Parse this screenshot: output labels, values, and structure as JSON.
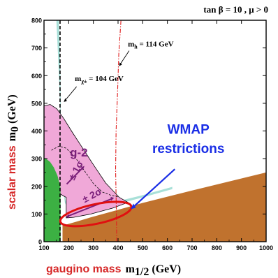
{
  "chart_data": {
    "type": "area",
    "title": "tan β = 10 ,  μ > 0",
    "xlabel": {
      "prefix": "gaugino mass",
      "symbol": "m",
      "subscript": "1/2",
      "unit": " (GeV)"
    },
    "ylabel": {
      "prefix": "scalar mass",
      "symbol": "m",
      "subscript": "0",
      "unit": " (GeV)"
    },
    "xlim": [
      100,
      1000
    ],
    "ylim": [
      0,
      800
    ],
    "x_ticks": [
      "100",
      "200",
      "300",
      "400",
      "500",
      "600",
      "700",
      "800",
      "900",
      "1000"
    ],
    "y_ticks": [
      "0",
      "100",
      "200",
      "300",
      "400",
      "500",
      "600",
      "700",
      "800"
    ],
    "regions": [
      {
        "name": "charged-LSP-excluded",
        "color": "#c0722e",
        "points": [
          [
            175,
            0
          ],
          [
            1000,
            0
          ],
          [
            1000,
            250
          ],
          [
            700,
            185
          ],
          [
            500,
            140
          ],
          [
            380,
            110
          ],
          [
            290,
            88
          ],
          [
            230,
            72
          ],
          [
            175,
            58
          ]
        ]
      },
      {
        "name": "b-to-s-gamma-excluded",
        "color": "#3cb043",
        "points": [
          [
            100,
            0
          ],
          [
            167,
            0
          ],
          [
            167,
            195
          ],
          [
            155,
            238
          ],
          [
            140,
            268
          ],
          [
            125,
            288
          ],
          [
            108,
            300
          ],
          [
            100,
            303
          ]
        ]
      },
      {
        "name": "g-2-favoured",
        "color": "#f0a8d8",
        "points": [
          [
            100,
            490
          ],
          [
            125,
            496
          ],
          [
            152,
            480
          ],
          [
            180,
            445
          ],
          [
            215,
            395
          ],
          [
            255,
            340
          ],
          [
            300,
            278
          ],
          [
            350,
            212
          ],
          [
            405,
            160
          ],
          [
            440,
            142
          ],
          [
            380,
            122
          ],
          [
            290,
            100
          ],
          [
            220,
            88
          ],
          [
            190,
            86
          ],
          [
            190,
            160
          ],
          [
            170,
            170
          ],
          [
            145,
            185
          ],
          [
            120,
            198
          ],
          [
            100,
            205
          ]
        ]
      },
      {
        "name": "wmap-cosmology-strip",
        "color": "#a8e0d8",
        "points": [
          [
            148,
            800
          ],
          [
            160,
            800
          ],
          [
            166,
            640
          ],
          [
            168,
            470
          ],
          [
            170,
            350
          ],
          [
            172,
            250
          ],
          [
            176,
            195
          ],
          [
            185,
            140
          ],
          [
            200,
            115
          ],
          [
            230,
            110
          ],
          [
            290,
            118
          ],
          [
            380,
            132
          ],
          [
            500,
            160
          ],
          [
            620,
            190
          ],
          [
            620,
            198
          ],
          [
            500,
            168
          ],
          [
            380,
            142
          ],
          [
            290,
            126
          ],
          [
            230,
            118
          ],
          [
            200,
            124
          ],
          [
            187,
            150
          ],
          [
            180,
            200
          ],
          [
            175,
            260
          ],
          [
            170,
            360
          ],
          [
            165,
            500
          ],
          [
            158,
            650
          ],
          [
            150,
            800
          ]
        ]
      }
    ],
    "g2_1sigma_boundary": [
      [
        130,
        330
      ],
      [
        160,
        345
      ],
      [
        190,
        338
      ],
      [
        230,
        300
      ],
      [
        265,
        255
      ],
      [
        300,
        210
      ],
      [
        335,
        180
      ],
      [
        370,
        168
      ],
      [
        400,
        162
      ]
    ],
    "chargino_limit": {
      "label": "m",
      "sub": "χ±",
      "value": " = 104 GeV",
      "x": 165
    },
    "higgs_limit": {
      "label": "m",
      "sub": "h",
      "value": " = 114 GeV",
      "points": [
        [
          395,
          0
        ],
        [
          393,
          120
        ],
        [
          390,
          260
        ],
        [
          392,
          400
        ],
        [
          398,
          540
        ],
        [
          403,
          680
        ],
        [
          412,
          800
        ]
      ]
    },
    "annotations": {
      "g2": "g-2",
      "one_sigma": "± 1σ",
      "two_sigma": "± 2σ",
      "wmap_line1": "WMAP",
      "wmap_line2": "restrictions"
    }
  }
}
